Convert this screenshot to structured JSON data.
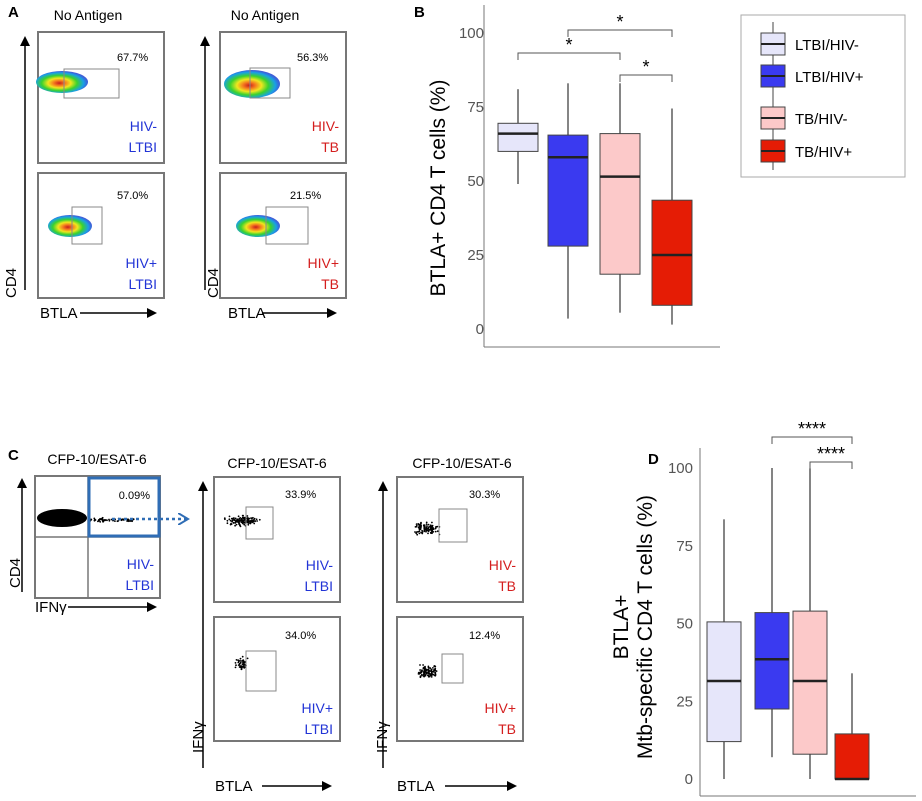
{
  "colors": {
    "blue_text": "#2234d6",
    "red_text": "#d41e1e",
    "LTBI_HIV_neg": "#e6e6fa",
    "LTBI_HIV_pos": "#3a3af0",
    "TB_HIV_neg": "#fcc9c9",
    "TB_HIV_pos": "#e51c05",
    "gate_box": "#2f6db5",
    "dotted_arrow": "#2f6db5"
  },
  "panelA": {
    "letter": "A",
    "headers": [
      "No Antigen",
      "No Antigen"
    ],
    "x_axis": "BTLA",
    "y_axis": "CD4",
    "plots": [
      {
        "pct": "67.7%",
        "label1": "HIV-",
        "label2": "LTBI",
        "color": "blue"
      },
      {
        "pct": "56.3%",
        "label1": "HIV-",
        "label2": "TB",
        "color": "red"
      },
      {
        "pct": "57.0%",
        "label1": "HIV+",
        "label2": "LTBI",
        "color": "blue"
      },
      {
        "pct": "21.5%",
        "label1": "HIV+",
        "label2": "TB",
        "color": "red"
      }
    ]
  },
  "panelC": {
    "letter": "C",
    "headers": [
      "CFP-10/ESAT-6",
      "CFP-10/ESAT-6",
      "CFP-10/ESAT-6"
    ],
    "first_plot": {
      "pct": "0.09%",
      "label1": "HIV-",
      "label2": "LTBI",
      "x_axis": "IFNγ",
      "y_axis": "CD4"
    },
    "x_axis": "BTLA",
    "y_axis": "IFNγ",
    "plots": [
      {
        "pct": "33.9%",
        "label1": "HIV-",
        "label2": "LTBI",
        "color": "blue"
      },
      {
        "pct": "30.3%",
        "label1": "HIV-",
        "label2": "TB",
        "color": "red"
      },
      {
        "pct": "34.0%",
        "label1": "HIV+",
        "label2": "LTBI",
        "color": "blue"
      },
      {
        "pct": "12.4%",
        "label1": "HIV+",
        "label2": "TB",
        "color": "red"
      }
    ]
  },
  "legend": [
    "LTBI/HIV-",
    "LTBI/HIV+",
    "TB/HIV-",
    "TB/HIV+"
  ],
  "chart_data": [
    {
      "panel": "B",
      "type": "box",
      "ylabel": "BTLA+ CD4 T cells (%)",
      "ylim": [
        0,
        105
      ],
      "yticks": [
        0,
        25,
        50,
        75,
        100
      ],
      "categories": [
        "LTBI/HIV-",
        "LTBI/HIV+",
        "TB/HIV-",
        "TB/HIV+"
      ],
      "boxes": [
        {
          "group": "LTBI/HIV-",
          "min": 49,
          "q1": 60,
          "median": 66,
          "q3": 69.5,
          "max": 81
        },
        {
          "group": "LTBI/HIV+",
          "min": 3.5,
          "q1": 28,
          "median": 58,
          "q3": 65.5,
          "max": 83
        },
        {
          "group": "TB/HIV-",
          "min": 5.5,
          "q1": 18.5,
          "median": 51.5,
          "q3": 66,
          "max": 83
        },
        {
          "group": "TB/HIV+",
          "min": 1.5,
          "q1": 8,
          "median": 25,
          "q3": 43.5,
          "max": 74.5
        }
      ],
      "significance": [
        {
          "from": "LTBI/HIV+",
          "to": "TB/HIV+",
          "label": "*"
        },
        {
          "from": "LTBI/HIV-",
          "to": "TB/HIV-",
          "label": "*"
        },
        {
          "from": "TB/HIV-",
          "to": "TB/HIV+",
          "label": "*"
        }
      ]
    },
    {
      "panel": "D",
      "type": "box",
      "ylabel_line1": "BTLA+",
      "ylabel_line2": "Mtb-specific CD4 T cells (%)",
      "ylim": [
        0,
        105
      ],
      "yticks": [
        0,
        25,
        50,
        75,
        100
      ],
      "categories": [
        "LTBI/HIV-",
        "LTBI/HIV+",
        "TB/HIV-",
        "TB/HIV+"
      ],
      "boxes": [
        {
          "group": "LTBI/HIV-",
          "min": 0,
          "q1": 12,
          "median": 31.5,
          "q3": 50.5,
          "max": 83.5
        },
        {
          "group": "LTBI/HIV+",
          "min": 7,
          "q1": 22.5,
          "median": 38.5,
          "q3": 53.5,
          "max": 100
        },
        {
          "group": "TB/HIV-",
          "min": 0,
          "q1": 8,
          "median": 31.5,
          "q3": 54,
          "max": 100
        },
        {
          "group": "TB/HIV+",
          "min": 0,
          "q1": 0,
          "median": 0,
          "q3": 14.5,
          "max": 34
        }
      ],
      "significance": [
        {
          "from": "LTBI/HIV+",
          "to": "TB/HIV+",
          "label": "****"
        },
        {
          "from": "TB/HIV-",
          "to": "TB/HIV+",
          "label": "****"
        }
      ]
    }
  ]
}
